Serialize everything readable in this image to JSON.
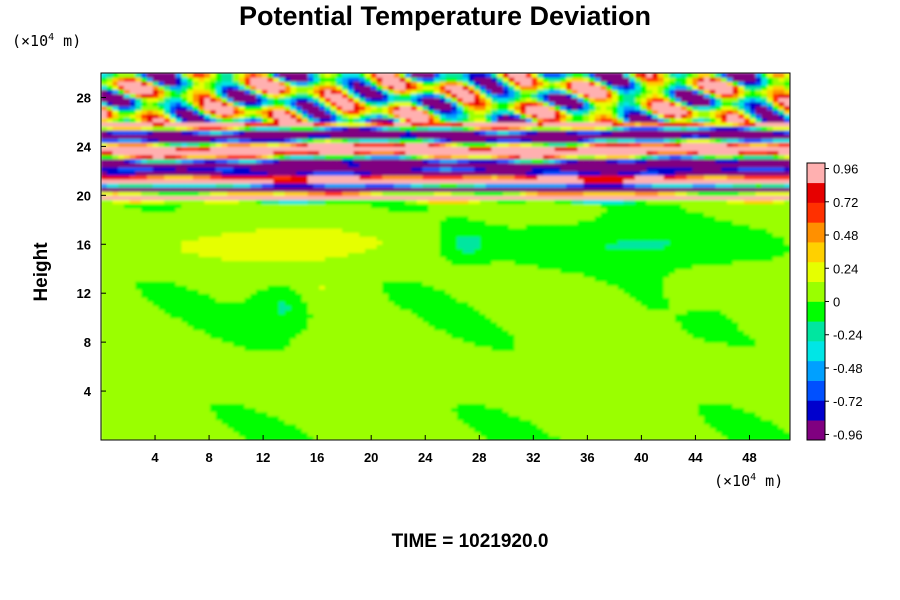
{
  "chart_data": {
    "type": "heatmap",
    "title": "Potential Temperature Deviation",
    "ylabel": "Height",
    "xunit": {
      "prefix": "(×10",
      "exp": "4",
      "suffix": " m)"
    },
    "yunit": {
      "prefix": "(×10",
      "exp": "4",
      "suffix": " m)"
    },
    "xlim": [
      0,
      51
    ],
    "ylim": [
      0,
      30
    ],
    "xticks": [
      4,
      8,
      12,
      16,
      20,
      24,
      28,
      32,
      36,
      40,
      44,
      48
    ],
    "yticks": [
      4,
      8,
      12,
      16,
      20,
      24,
      28
    ],
    "colorbar": {
      "range": [
        -1.0,
        1.0
      ],
      "ticks": [
        "0.96",
        "0.72",
        "0.48",
        "0.24",
        "0",
        "-0.24",
        "-0.48",
        "-0.72",
        "-0.96"
      ],
      "colors": [
        "#800080",
        "#0000cd",
        "#0050ff",
        "#00a0ff",
        "#00e6e6",
        "#00e6a0",
        "#00ff00",
        "#9aff00",
        "#e6ff00",
        "#ffd000",
        "#ff9000",
        "#ff3000",
        "#e60000",
        "#ffb0b0"
      ]
    },
    "field_summary": [
      {
        "region": "y 0-19.5 (troposphere)",
        "value_range": [
          -0.3,
          0.25
        ],
        "dominant": "near 0 (green)"
      },
      {
        "region": "y 19.5-22.5 (layered bands)",
        "value_range": [
          -1.0,
          1.0
        ],
        "dominant": "alternating >0.96 and <-0.96"
      },
      {
        "region": "y 22.5-26 (layered bands)",
        "value_range": [
          -1.0,
          1.0
        ],
        "dominant": "strong positive band near y 25"
      },
      {
        "region": "y 26-30 (waves)",
        "value_range": [
          -1.0,
          1.0
        ],
        "dominant": "oscillating cells"
      }
    ]
  },
  "footer": {
    "time_label": "TIME = 1021920.0"
  }
}
